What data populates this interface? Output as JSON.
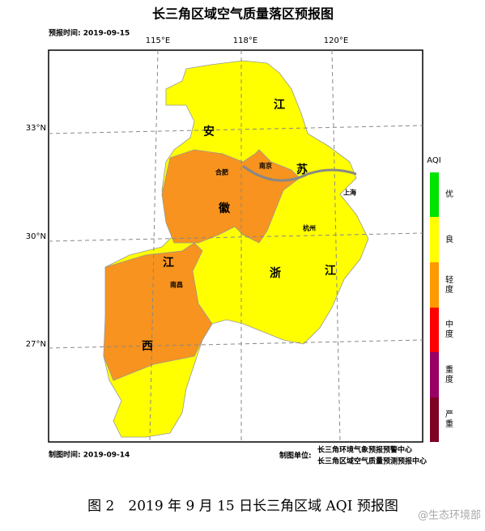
{
  "header": {
    "title": "长三角区域空气质量落区预报图",
    "forecast_time": "预报时间: 2019-09-15"
  },
  "axes": {
    "longitudes": [
      "115°E",
      "118°E",
      "120°E"
    ],
    "latitudes": [
      "33°N",
      "30°N",
      "27°N"
    ]
  },
  "provinces": [
    "江",
    "苏",
    "安",
    "徽",
    "浙",
    "江",
    "江",
    "西"
  ],
  "cities": [
    "合肥",
    "南京",
    "上海",
    "杭州",
    "南昌"
  ],
  "legend": {
    "title": "AQI",
    "levels": [
      "优",
      "良",
      "轻度",
      "中度",
      "重度",
      "严重"
    ]
  },
  "footer": {
    "made_time": "制图时间: 2019-09-14",
    "unit_label": "制图单位:",
    "units": [
      "长三角环境气象预报预警中心",
      "长三角区域空气质量预测预报中心"
    ]
  },
  "caption": "图 2　2019 年 9 月 15 日长三角区域 AQI 预报图",
  "watermark": "@生态环境部"
}
